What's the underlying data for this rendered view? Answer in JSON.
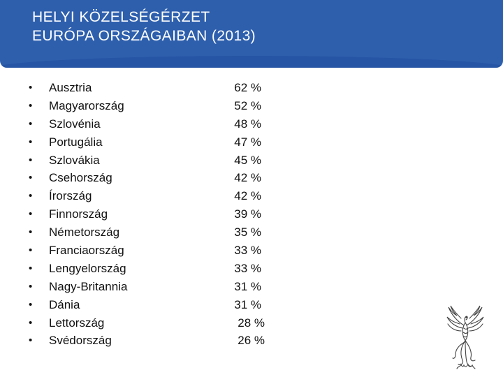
{
  "title": {
    "line1": "HELYI KÖZELSÉGÉRZET",
    "line2": "EURÓPA ORSZÁGAIBAN (2013)"
  },
  "bullet_char": "•",
  "items": [
    {
      "country": "Ausztria",
      "value": "62 %"
    },
    {
      "country": "Magyarország",
      "value": "52 %"
    },
    {
      "country": "Szlovénia",
      "value": "48 %"
    },
    {
      "country": "Portugália",
      "value": "47 %"
    },
    {
      "country": "Szlovákia",
      "value": "45 %"
    },
    {
      "country": "Csehország",
      "value": "42 %"
    },
    {
      "country": "Írország",
      "value": "42 %"
    },
    {
      "country": "Finnország",
      "value": "39 %"
    },
    {
      "country": "Németország",
      "value": "35 %"
    },
    {
      "country": "Franciaország",
      "value": "33 %"
    },
    {
      "country": "Lengyelország",
      "value": "33 %"
    },
    {
      "country": "Nagy-Britannia",
      "value": "31 %"
    },
    {
      "country": "Dánia",
      "value": "31 %"
    },
    {
      "country": "Lettország",
      "value": "28 %"
    },
    {
      "country": "Svédország",
      "value": "26 %"
    }
  ],
  "colors": {
    "title_bar": "#2e5fad",
    "title_text": "#ffffff",
    "body_text": "#111111"
  },
  "logo_icon": "phoenix-icon"
}
